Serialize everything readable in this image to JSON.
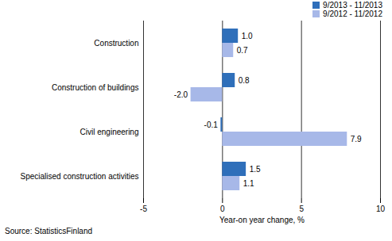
{
  "chart_data": {
    "type": "bar",
    "orientation": "horizontal",
    "categories": [
      "Construction",
      "Construction of buildings",
      "Civil engineering",
      "Specialised construction activities"
    ],
    "series": [
      {
        "name": "9/2013 - 11/2013",
        "color": "#2f6fba",
        "values": [
          1.0,
          0.8,
          -0.1,
          1.5
        ],
        "value_labels": [
          "1.0",
          "0.8",
          "-0.1",
          "1.5"
        ]
      },
      {
        "name": "9/2012 - 11/2012",
        "color": "#a7b8e8",
        "values": [
          0.7,
          -2.0,
          7.9,
          1.1
        ],
        "value_labels": [
          "0.7",
          "-2.0",
          "7.9",
          "1.1"
        ]
      }
    ],
    "x_label": "Year-on year change, %",
    "xlim": [
      -5,
      10
    ],
    "xticks": [
      -5,
      0,
      5,
      10
    ],
    "grid": true,
    "data_labels": true,
    "legend": "top-right",
    "caption": "Source: StatisticsFinland"
  }
}
